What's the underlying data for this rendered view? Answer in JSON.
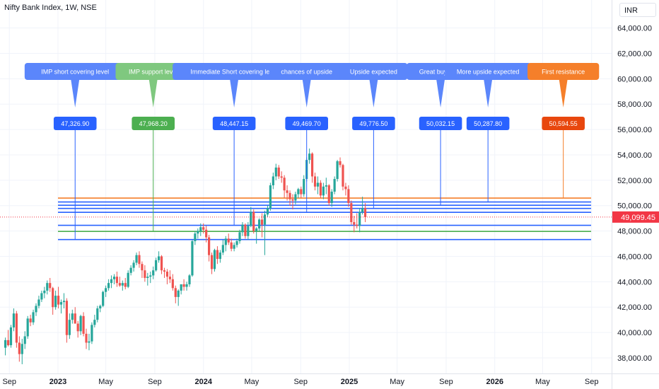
{
  "header": {
    "title": "Nifty Bank Index, 1W, NSE",
    "currency": "INR"
  },
  "colors": {
    "up": "#26a69a",
    "down": "#ef5350",
    "blue": "#2962ff",
    "green": "#4caf50",
    "orange": "#f57f2a",
    "last_price": "#f23645",
    "grid": "#f0f3fa"
  },
  "chart_data": {
    "type": "candlestick",
    "interval": "1W",
    "ylim": [
      37000,
      65000
    ],
    "y_ticks": [
      38000,
      40000,
      42000,
      44000,
      46000,
      48000,
      50000,
      52000,
      54000,
      56000,
      58000,
      60000,
      62000,
      64000
    ],
    "y_tick_labels": [
      "38,000.00",
      "40,000.00",
      "42,000.00",
      "44,000.00",
      "46,000.00",
      "48,000.00",
      "50,000.00",
      "52,000.00",
      "54,000.00",
      "56,000.00",
      "58,000.00",
      "60,000.00",
      "62,000.00",
      "64,000.00"
    ],
    "x_ticks": [
      {
        "label": "Sep",
        "date": "2022-09-01",
        "bold": false
      },
      {
        "label": "2023",
        "date": "2023-01-01",
        "bold": true
      },
      {
        "label": "May",
        "date": "2023-05-01",
        "bold": false
      },
      {
        "label": "Sep",
        "date": "2023-09-01",
        "bold": false
      },
      {
        "label": "2024",
        "date": "2024-01-01",
        "bold": true
      },
      {
        "label": "May",
        "date": "2024-05-01",
        "bold": false
      },
      {
        "label": "Sep",
        "date": "2024-09-01",
        "bold": false
      },
      {
        "label": "2025",
        "date": "2025-01-01",
        "bold": true
      },
      {
        "label": "May",
        "date": "2025-05-01",
        "bold": false
      },
      {
        "label": "Sep",
        "date": "2025-09-01",
        "bold": false
      },
      {
        "label": "2026",
        "date": "2026-01-01",
        "bold": true
      },
      {
        "label": "May",
        "date": "2026-05-01",
        "bold": false
      },
      {
        "label": "Sep",
        "date": "2026-09-01",
        "bold": false
      }
    ],
    "candles": [
      {
        "t": "2022-08-22",
        "o": 38800,
        "h": 39600,
        "l": 38200,
        "c": 39400
      },
      {
        "t": "2022-08-29",
        "o": 39400,
        "h": 40200,
        "l": 38900,
        "c": 39000
      },
      {
        "t": "2022-09-05",
        "o": 39000,
        "h": 40600,
        "l": 38800,
        "c": 40400
      },
      {
        "t": "2022-09-12",
        "o": 40400,
        "h": 41900,
        "l": 40100,
        "c": 41500
      },
      {
        "t": "2022-09-19",
        "o": 41500,
        "h": 41700,
        "l": 38800,
        "c": 39200
      },
      {
        "t": "2022-09-26",
        "o": 39200,
        "h": 39700,
        "l": 37700,
        "c": 38300
      },
      {
        "t": "2022-10-03",
        "o": 38300,
        "h": 39500,
        "l": 37500,
        "c": 39100
      },
      {
        "t": "2022-10-10",
        "o": 39100,
        "h": 40100,
        "l": 38700,
        "c": 39700
      },
      {
        "t": "2022-10-17",
        "o": 39700,
        "h": 41300,
        "l": 39500,
        "c": 41100
      },
      {
        "t": "2022-10-24",
        "o": 41100,
        "h": 41400,
        "l": 40500,
        "c": 40800
      },
      {
        "t": "2022-10-31",
        "o": 40800,
        "h": 41800,
        "l": 40600,
        "c": 41600
      },
      {
        "t": "2022-11-07",
        "o": 41600,
        "h": 42300,
        "l": 41300,
        "c": 42100
      },
      {
        "t": "2022-11-14",
        "o": 42100,
        "h": 42900,
        "l": 41900,
        "c": 42600
      },
      {
        "t": "2022-11-21",
        "o": 42600,
        "h": 43300,
        "l": 42400,
        "c": 43100
      },
      {
        "t": "2022-11-28",
        "o": 43100,
        "h": 43600,
        "l": 42700,
        "c": 43300
      },
      {
        "t": "2022-12-05",
        "o": 43300,
        "h": 44100,
        "l": 43000,
        "c": 43900
      },
      {
        "t": "2022-12-12",
        "o": 43900,
        "h": 44300,
        "l": 43200,
        "c": 43500
      },
      {
        "t": "2022-12-19",
        "o": 43500,
        "h": 43600,
        "l": 41400,
        "c": 42000
      },
      {
        "t": "2022-12-26",
        "o": 42000,
        "h": 43300,
        "l": 41800,
        "c": 42900
      },
      {
        "t": "2023-01-02",
        "o": 42900,
        "h": 43600,
        "l": 41900,
        "c": 42200
      },
      {
        "t": "2023-01-09",
        "o": 42200,
        "h": 42600,
        "l": 41500,
        "c": 42400
      },
      {
        "t": "2023-01-16",
        "o": 42400,
        "h": 43100,
        "l": 41900,
        "c": 42500
      },
      {
        "t": "2023-01-23",
        "o": 42500,
        "h": 42700,
        "l": 39200,
        "c": 39800
      },
      {
        "t": "2023-01-30",
        "o": 39800,
        "h": 41500,
        "l": 39500,
        "c": 41000
      },
      {
        "t": "2023-02-06",
        "o": 41000,
        "h": 41800,
        "l": 40700,
        "c": 41500
      },
      {
        "t": "2023-02-13",
        "o": 41500,
        "h": 42000,
        "l": 40900,
        "c": 40700
      },
      {
        "t": "2023-02-20",
        "o": 40700,
        "h": 40900,
        "l": 39600,
        "c": 40100
      },
      {
        "t": "2023-02-27",
        "o": 40100,
        "h": 41400,
        "l": 39800,
        "c": 41300
      },
      {
        "t": "2023-03-06",
        "o": 41300,
        "h": 41600,
        "l": 39700,
        "c": 39900
      },
      {
        "t": "2023-03-13",
        "o": 39900,
        "h": 40300,
        "l": 38700,
        "c": 39200
      },
      {
        "t": "2023-03-20",
        "o": 39200,
        "h": 39900,
        "l": 38600,
        "c": 39300
      },
      {
        "t": "2023-03-27",
        "o": 39300,
        "h": 40800,
        "l": 39100,
        "c": 40600
      },
      {
        "t": "2023-04-03",
        "o": 40600,
        "h": 41400,
        "l": 40400,
        "c": 41000
      },
      {
        "t": "2023-04-10",
        "o": 41000,
        "h": 42100,
        "l": 40800,
        "c": 41900
      },
      {
        "t": "2023-04-17",
        "o": 41900,
        "h": 42200,
        "l": 41600,
        "c": 42100
      },
      {
        "t": "2023-04-24",
        "o": 42100,
        "h": 43300,
        "l": 42000,
        "c": 43200
      },
      {
        "t": "2023-05-01",
        "o": 43200,
        "h": 43700,
        "l": 42800,
        "c": 43500
      },
      {
        "t": "2023-05-08",
        "o": 43500,
        "h": 44200,
        "l": 43300,
        "c": 43900
      },
      {
        "t": "2023-05-15",
        "o": 43900,
        "h": 44500,
        "l": 43500,
        "c": 44200
      },
      {
        "t": "2023-05-22",
        "o": 44200,
        "h": 44600,
        "l": 43800,
        "c": 44400
      },
      {
        "t": "2023-05-29",
        "o": 44400,
        "h": 44800,
        "l": 43600,
        "c": 43900
      },
      {
        "t": "2023-06-05",
        "o": 43900,
        "h": 44400,
        "l": 43600,
        "c": 43700
      },
      {
        "t": "2023-06-12",
        "o": 43700,
        "h": 44100,
        "l": 43300,
        "c": 43900
      },
      {
        "t": "2023-06-19",
        "o": 43900,
        "h": 44300,
        "l": 43400,
        "c": 43600
      },
      {
        "t": "2023-06-26",
        "o": 43600,
        "h": 44900,
        "l": 43500,
        "c": 44700
      },
      {
        "t": "2023-07-03",
        "o": 44700,
        "h": 45300,
        "l": 44500,
        "c": 45100
      },
      {
        "t": "2023-07-10",
        "o": 45100,
        "h": 45700,
        "l": 44800,
        "c": 45500
      },
      {
        "t": "2023-07-17",
        "o": 45500,
        "h": 46300,
        "l": 45300,
        "c": 46100
      },
      {
        "t": "2023-07-24",
        "o": 46100,
        "h": 46400,
        "l": 45100,
        "c": 45400
      },
      {
        "t": "2023-07-31",
        "o": 45400,
        "h": 45600,
        "l": 44300,
        "c": 44900
      },
      {
        "t": "2023-08-07",
        "o": 44900,
        "h": 45300,
        "l": 44000,
        "c": 44300
      },
      {
        "t": "2023-08-14",
        "o": 44300,
        "h": 44700,
        "l": 43700,
        "c": 44400
      },
      {
        "t": "2023-08-21",
        "o": 44400,
        "h": 44800,
        "l": 43900,
        "c": 44500
      },
      {
        "t": "2023-08-28",
        "o": 44500,
        "h": 45200,
        "l": 44200,
        "c": 44900
      },
      {
        "t": "2023-09-04",
        "o": 44900,
        "h": 45900,
        "l": 44800,
        "c": 45700
      },
      {
        "t": "2023-09-11",
        "o": 45700,
        "h": 46400,
        "l": 45500,
        "c": 46000
      },
      {
        "t": "2023-09-18",
        "o": 46000,
        "h": 46100,
        "l": 44600,
        "c": 44900
      },
      {
        "t": "2023-09-25",
        "o": 44900,
        "h": 45100,
        "l": 44300,
        "c": 44800
      },
      {
        "t": "2023-10-02",
        "o": 44800,
        "h": 45000,
        "l": 43800,
        "c": 44400
      },
      {
        "t": "2023-10-09",
        "o": 44400,
        "h": 44900,
        "l": 43900,
        "c": 44200
      },
      {
        "t": "2023-10-16",
        "o": 44200,
        "h": 44600,
        "l": 43300,
        "c": 43500
      },
      {
        "t": "2023-10-23",
        "o": 43500,
        "h": 43700,
        "l": 42300,
        "c": 42800
      },
      {
        "t": "2023-10-30",
        "o": 42800,
        "h": 43400,
        "l": 42100,
        "c": 43300
      },
      {
        "t": "2023-11-06",
        "o": 43300,
        "h": 43800,
        "l": 43000,
        "c": 43800
      },
      {
        "t": "2023-11-13",
        "o": 43800,
        "h": 44200,
        "l": 43300,
        "c": 43600
      },
      {
        "t": "2023-11-20",
        "o": 43600,
        "h": 44000,
        "l": 43300,
        "c": 43800
      },
      {
        "t": "2023-11-27",
        "o": 43800,
        "h": 44600,
        "l": 43600,
        "c": 44500
      },
      {
        "t": "2023-12-04",
        "o": 44500,
        "h": 47300,
        "l": 44400,
        "c": 47200
      },
      {
        "t": "2023-12-11",
        "o": 47200,
        "h": 48000,
        "l": 46900,
        "c": 47800
      },
      {
        "t": "2023-12-18",
        "o": 47800,
        "h": 48200,
        "l": 47400,
        "c": 48000
      },
      {
        "t": "2023-12-25",
        "o": 48000,
        "h": 48600,
        "l": 47600,
        "c": 48300
      },
      {
        "t": "2024-01-01",
        "o": 48300,
        "h": 48600,
        "l": 47800,
        "c": 48100
      },
      {
        "t": "2024-01-08",
        "o": 48100,
        "h": 48400,
        "l": 47100,
        "c": 47500
      },
      {
        "t": "2024-01-15",
        "o": 47500,
        "h": 47700,
        "l": 45600,
        "c": 46100
      },
      {
        "t": "2024-01-22",
        "o": 46100,
        "h": 46300,
        "l": 44600,
        "c": 45000
      },
      {
        "t": "2024-01-29",
        "o": 45000,
        "h": 46600,
        "l": 44800,
        "c": 46500
      },
      {
        "t": "2024-02-05",
        "o": 46500,
        "h": 46800,
        "l": 45400,
        "c": 45800
      },
      {
        "t": "2024-02-12",
        "o": 45800,
        "h": 46500,
        "l": 45500,
        "c": 46300
      },
      {
        "t": "2024-02-19",
        "o": 46300,
        "h": 47300,
        "l": 46100,
        "c": 46900
      },
      {
        "t": "2024-02-26",
        "o": 46900,
        "h": 47600,
        "l": 46400,
        "c": 47400
      },
      {
        "t": "2024-03-04",
        "o": 47400,
        "h": 47800,
        "l": 46900,
        "c": 47100
      },
      {
        "t": "2024-03-11",
        "o": 47100,
        "h": 47400,
        "l": 46400,
        "c": 46600
      },
      {
        "t": "2024-03-18",
        "o": 46600,
        "h": 47100,
        "l": 46400,
        "c": 46900
      },
      {
        "t": "2024-03-25",
        "o": 46900,
        "h": 47400,
        "l": 46700,
        "c": 47200
      },
      {
        "t": "2024-04-01",
        "o": 47200,
        "h": 48100,
        "l": 47000,
        "c": 47900
      },
      {
        "t": "2024-04-08",
        "o": 47900,
        "h": 48700,
        "l": 47600,
        "c": 48500
      },
      {
        "t": "2024-04-15",
        "o": 48500,
        "h": 48600,
        "l": 47400,
        "c": 47600
      },
      {
        "t": "2024-04-22",
        "o": 47600,
        "h": 48700,
        "l": 47300,
        "c": 48400
      },
      {
        "t": "2024-04-29",
        "o": 48400,
        "h": 49900,
        "l": 48300,
        "c": 49500
      },
      {
        "t": "2024-05-06",
        "o": 49500,
        "h": 49700,
        "l": 47800,
        "c": 48000
      },
      {
        "t": "2024-05-13",
        "o": 48000,
        "h": 48300,
        "l": 47000,
        "c": 48200
      },
      {
        "t": "2024-05-20",
        "o": 48200,
        "h": 49000,
        "l": 48000,
        "c": 48900
      },
      {
        "t": "2024-05-27",
        "o": 48900,
        "h": 49400,
        "l": 47500,
        "c": 48500
      },
      {
        "t": "2024-06-03",
        "o": 48500,
        "h": 49600,
        "l": 46100,
        "c": 49300
      },
      {
        "t": "2024-06-10",
        "o": 49300,
        "h": 50000,
        "l": 49100,
        "c": 49800
      },
      {
        "t": "2024-06-17",
        "o": 49800,
        "h": 51800,
        "l": 49600,
        "c": 51600
      },
      {
        "t": "2024-06-24",
        "o": 51600,
        "h": 52600,
        "l": 51300,
        "c": 52300
      },
      {
        "t": "2024-07-01",
        "o": 52300,
        "h": 53300,
        "l": 52000,
        "c": 53000
      },
      {
        "t": "2024-07-08",
        "o": 53000,
        "h": 53200,
        "l": 52100,
        "c": 52300
      },
      {
        "t": "2024-07-15",
        "o": 52300,
        "h": 52700,
        "l": 51800,
        "c": 52200
      },
      {
        "t": "2024-07-22",
        "o": 52200,
        "h": 52400,
        "l": 50600,
        "c": 51200
      },
      {
        "t": "2024-07-29",
        "o": 51200,
        "h": 51600,
        "l": 50400,
        "c": 51000
      },
      {
        "t": "2024-08-05",
        "o": 51000,
        "h": 51200,
        "l": 50000,
        "c": 50500
      },
      {
        "t": "2024-08-12",
        "o": 50500,
        "h": 50900,
        "l": 49700,
        "c": 50400
      },
      {
        "t": "2024-08-19",
        "o": 50400,
        "h": 51100,
        "l": 50100,
        "c": 50900
      },
      {
        "t": "2024-08-26",
        "o": 50900,
        "h": 51400,
        "l": 50600,
        "c": 51300
      },
      {
        "t": "2024-09-02",
        "o": 51300,
        "h": 51500,
        "l": 50600,
        "c": 50900
      },
      {
        "t": "2024-09-09",
        "o": 50900,
        "h": 52400,
        "l": 50700,
        "c": 52100
      },
      {
        "t": "2024-09-16",
        "o": 52100,
        "h": 53800,
        "l": 51900,
        "c": 53600
      },
      {
        "t": "2024-09-23",
        "o": 53600,
        "h": 54500,
        "l": 53300,
        "c": 54100
      },
      {
        "t": "2024-09-30",
        "o": 54100,
        "h": 54200,
        "l": 51800,
        "c": 52300
      },
      {
        "t": "2024-10-07",
        "o": 52300,
        "h": 52600,
        "l": 51200,
        "c": 51500
      },
      {
        "t": "2024-10-14",
        "o": 51500,
        "h": 52300,
        "l": 50900,
        "c": 51800
      },
      {
        "t": "2024-10-21",
        "o": 51800,
        "h": 52000,
        "l": 50600,
        "c": 50800
      },
      {
        "t": "2024-10-28",
        "o": 50800,
        "h": 51800,
        "l": 50500,
        "c": 51500
      },
      {
        "t": "2024-11-04",
        "o": 51500,
        "h": 52200,
        "l": 50900,
        "c": 51600
      },
      {
        "t": "2024-11-11",
        "o": 51600,
        "h": 51700,
        "l": 50000,
        "c": 50200
      },
      {
        "t": "2024-11-18",
        "o": 50200,
        "h": 51300,
        "l": 49900,
        "c": 51100
      },
      {
        "t": "2024-11-25",
        "o": 51100,
        "h": 52300,
        "l": 50900,
        "c": 52100
      },
      {
        "t": "2024-12-02",
        "o": 52100,
        "h": 53600,
        "l": 51900,
        "c": 53500
      },
      {
        "t": "2024-12-09",
        "o": 53500,
        "h": 53800,
        "l": 53000,
        "c": 53200
      },
      {
        "t": "2024-12-16",
        "o": 53200,
        "h": 53300,
        "l": 51200,
        "c": 51500
      },
      {
        "t": "2024-12-23",
        "o": 51500,
        "h": 51800,
        "l": 50800,
        "c": 51300
      },
      {
        "t": "2024-12-30",
        "o": 51300,
        "h": 51600,
        "l": 49900,
        "c": 50200
      },
      {
        "t": "2025-01-06",
        "o": 50200,
        "h": 50400,
        "l": 48500,
        "c": 48700
      },
      {
        "t": "2025-01-13",
        "o": 48700,
        "h": 49200,
        "l": 47900,
        "c": 48500
      },
      {
        "t": "2025-01-20",
        "o": 48500,
        "h": 49400,
        "l": 48200,
        "c": 48400
      },
      {
        "t": "2025-01-27",
        "o": 48400,
        "h": 49800,
        "l": 47900,
        "c": 49500
      },
      {
        "t": "2025-02-03",
        "o": 49500,
        "h": 50700,
        "l": 49300,
        "c": 49800
      },
      {
        "t": "2025-02-10",
        "o": 49800,
        "h": 50200,
        "l": 48700,
        "c": 49099.45
      }
    ],
    "levels": [
      {
        "label": "IMP short covering level",
        "price_label": "47,326.90",
        "value": 47326.9,
        "anchor": "2023-02-13",
        "color": "blue"
      },
      {
        "label": "IMP support level",
        "price_label": "47,968.20",
        "value": 47968.2,
        "anchor": "2023-08-28",
        "color": "green"
      },
      {
        "label": "Immediate Short covering level",
        "price_label": "48,447.15",
        "value": 48447.15,
        "anchor": "2024-03-18",
        "color": "blue"
      },
      {
        "label": "chances of upside",
        "price_label": "49,469.70",
        "value": 49469.7,
        "anchor": "2024-09-16",
        "color": "blue"
      },
      {
        "label": "Upside expected",
        "price_label": "49,776.50",
        "value": 49776.5,
        "anchor": "2025-03-03",
        "color": "blue"
      },
      {
        "label": "Great buy level",
        "price_label": "50,032.15",
        "value": 50032.15,
        "anchor": "2025-08-18",
        "color": "blue"
      },
      {
        "label": "More upside expected",
        "price_label": "50,287.80",
        "value": 50287.8,
        "anchor": "2025-12-15",
        "color": "blue"
      },
      {
        "label": "First resistance",
        "price_label": "50,594.55",
        "value": 50594.55,
        "anchor": "2026-06-22",
        "color": "orange"
      }
    ],
    "last_price": {
      "value": 49099.45,
      "label": "49,099.45"
    }
  }
}
